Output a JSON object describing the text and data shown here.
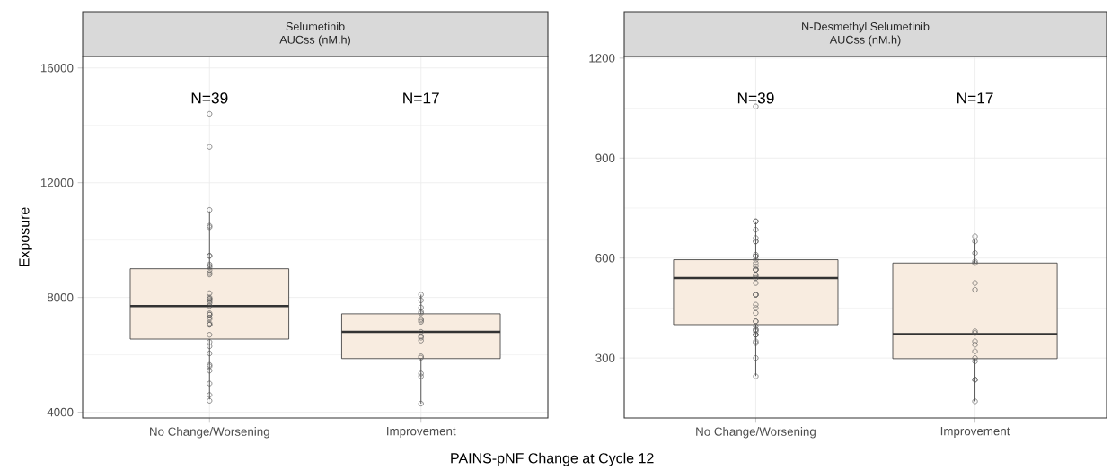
{
  "chart_data": [
    {
      "type": "box",
      "title": "Selumetinib",
      "subtitle": "AUCss (nM.h)",
      "xlabel": "PAINS-pNF Change at Cycle 12",
      "ylabel": "Exposure",
      "categories": [
        "No Change/Worsening",
        "Improvement"
      ],
      "boxes": [
        {
          "low": 4450,
          "q1": 6550,
          "median": 7700,
          "q3": 9000,
          "high": 11000
        },
        {
          "low": 4300,
          "q1": 5870,
          "median": 6800,
          "q3": 7430,
          "high": 8100
        }
      ],
      "color": "#f8ece0",
      "ylim": [
        3800,
        16400
      ],
      "yticks": [
        4000,
        8000,
        12000,
        16000
      ],
      "grid": true,
      "annotations": [
        "N=39",
        "N=17"
      ],
      "series": [
        {
          "type": "scatter",
          "color": "#555555",
          "marker": "circle",
          "x": [
            "No Change/Worsening",
            "No Change/Worsening",
            "No Change/Worsening",
            "No Change/Worsening",
            "No Change/Worsening",
            "No Change/Worsening",
            "No Change/Worsening",
            "No Change/Worsening",
            "No Change/Worsening",
            "No Change/Worsening",
            "No Change/Worsening",
            "No Change/Worsening",
            "No Change/Worsening",
            "No Change/Worsening",
            "No Change/Worsening",
            "No Change/Worsening",
            "No Change/Worsening",
            "No Change/Worsening",
            "No Change/Worsening",
            "No Change/Worsening",
            "No Change/Worsening",
            "No Change/Worsening",
            "No Change/Worsening",
            "No Change/Worsening",
            "No Change/Worsening",
            "No Change/Worsening",
            "No Change/Worsening",
            "No Change/Worsening",
            "No Change/Worsening",
            "No Change/Worsening",
            "No Change/Worsening",
            "No Change/Worsening",
            "No Change/Worsening",
            "No Change/Worsening",
            "No Change/Worsening",
            "No Change/Worsening",
            "No Change/Worsening",
            "No Change/Worsening",
            "No Change/Worsening"
          ],
          "values": [
            14400,
            13250,
            11050,
            10500,
            10450,
            9450,
            9450,
            9150,
            9100,
            9050,
            8950,
            8850,
            8800,
            8150,
            8000,
            7950,
            7950,
            7900,
            7850,
            7800,
            7700,
            7450,
            7400,
            7400,
            7300,
            7250,
            7100,
            7050,
            7050,
            6700,
            6450,
            6300,
            6050,
            5650,
            5600,
            5450,
            5000,
            4600,
            4400
          ]
        },
        {
          "type": "scatter",
          "color": "#555555",
          "marker": "circle",
          "x": [
            "Improvement",
            "Improvement",
            "Improvement",
            "Improvement",
            "Improvement",
            "Improvement",
            "Improvement",
            "Improvement",
            "Improvement",
            "Improvement",
            "Improvement",
            "Improvement",
            "Improvement",
            "Improvement",
            "Improvement",
            "Improvement",
            "Improvement"
          ],
          "values": [
            8100,
            7900,
            7650,
            7500,
            7450,
            7250,
            7200,
            7150,
            6800,
            6650,
            6600,
            6500,
            5950,
            5900,
            5350,
            5250,
            4300
          ]
        }
      ]
    },
    {
      "type": "box",
      "title": "N-Desmethyl Selumetinib",
      "subtitle": "AUCss (nM.h)",
      "categories": [
        "No Change/Worsening",
        "Improvement"
      ],
      "boxes": [
        {
          "low": 246,
          "q1": 400,
          "median": 540,
          "q3": 595,
          "high": 710
        },
        {
          "low": 170,
          "q1": 298,
          "median": 372,
          "q3": 585,
          "high": 655
        }
      ],
      "color": "#f8ece0",
      "ylim": [
        120,
        1205
      ],
      "yticks": [
        300,
        600,
        900,
        1200
      ],
      "grid": true,
      "annotations": [
        "N=39",
        "N=17"
      ],
      "series": [
        {
          "type": "scatter",
          "color": "#555555",
          "marker": "circle",
          "x": [
            "No Change/Worsening",
            "No Change/Worsening",
            "No Change/Worsening",
            "No Change/Worsening",
            "No Change/Worsening",
            "No Change/Worsening",
            "No Change/Worsening",
            "No Change/Worsening",
            "No Change/Worsening",
            "No Change/Worsening",
            "No Change/Worsening",
            "No Change/Worsening",
            "No Change/Worsening",
            "No Change/Worsening",
            "No Change/Worsening",
            "No Change/Worsening",
            "No Change/Worsening",
            "No Change/Worsening",
            "No Change/Worsening",
            "No Change/Worsening",
            "No Change/Worsening",
            "No Change/Worsening",
            "No Change/Worsening",
            "No Change/Worsening",
            "No Change/Worsening",
            "No Change/Worsening",
            "No Change/Worsening",
            "No Change/Worsening",
            "No Change/Worsening",
            "No Change/Worsening",
            "No Change/Worsening",
            "No Change/Worsening",
            "No Change/Worsening",
            "No Change/Worsening",
            "No Change/Worsening",
            "No Change/Worsening",
            "No Change/Worsening",
            "No Change/Worsening",
            "No Change/Worsening"
          ],
          "values": [
            1055,
            710,
            710,
            685,
            660,
            650,
            650,
            610,
            605,
            605,
            595,
            585,
            575,
            565,
            565,
            565,
            550,
            545,
            540,
            525,
            490,
            490,
            490,
            460,
            450,
            435,
            410,
            410,
            395,
            385,
            385,
            380,
            370,
            370,
            370,
            350,
            345,
            300,
            245
          ]
        },
        {
          "type": "scatter",
          "color": "#555555",
          "marker": "circle",
          "x": [
            "Improvement",
            "Improvement",
            "Improvement",
            "Improvement",
            "Improvement",
            "Improvement",
            "Improvement",
            "Improvement",
            "Improvement",
            "Improvement",
            "Improvement",
            "Improvement",
            "Improvement",
            "Improvement",
            "Improvement",
            "Improvement",
            "Improvement"
          ],
          "values": [
            665,
            650,
            615,
            590,
            585,
            525,
            505,
            380,
            375,
            350,
            340,
            320,
            300,
            290,
            235,
            235,
            170
          ]
        }
      ]
    }
  ]
}
